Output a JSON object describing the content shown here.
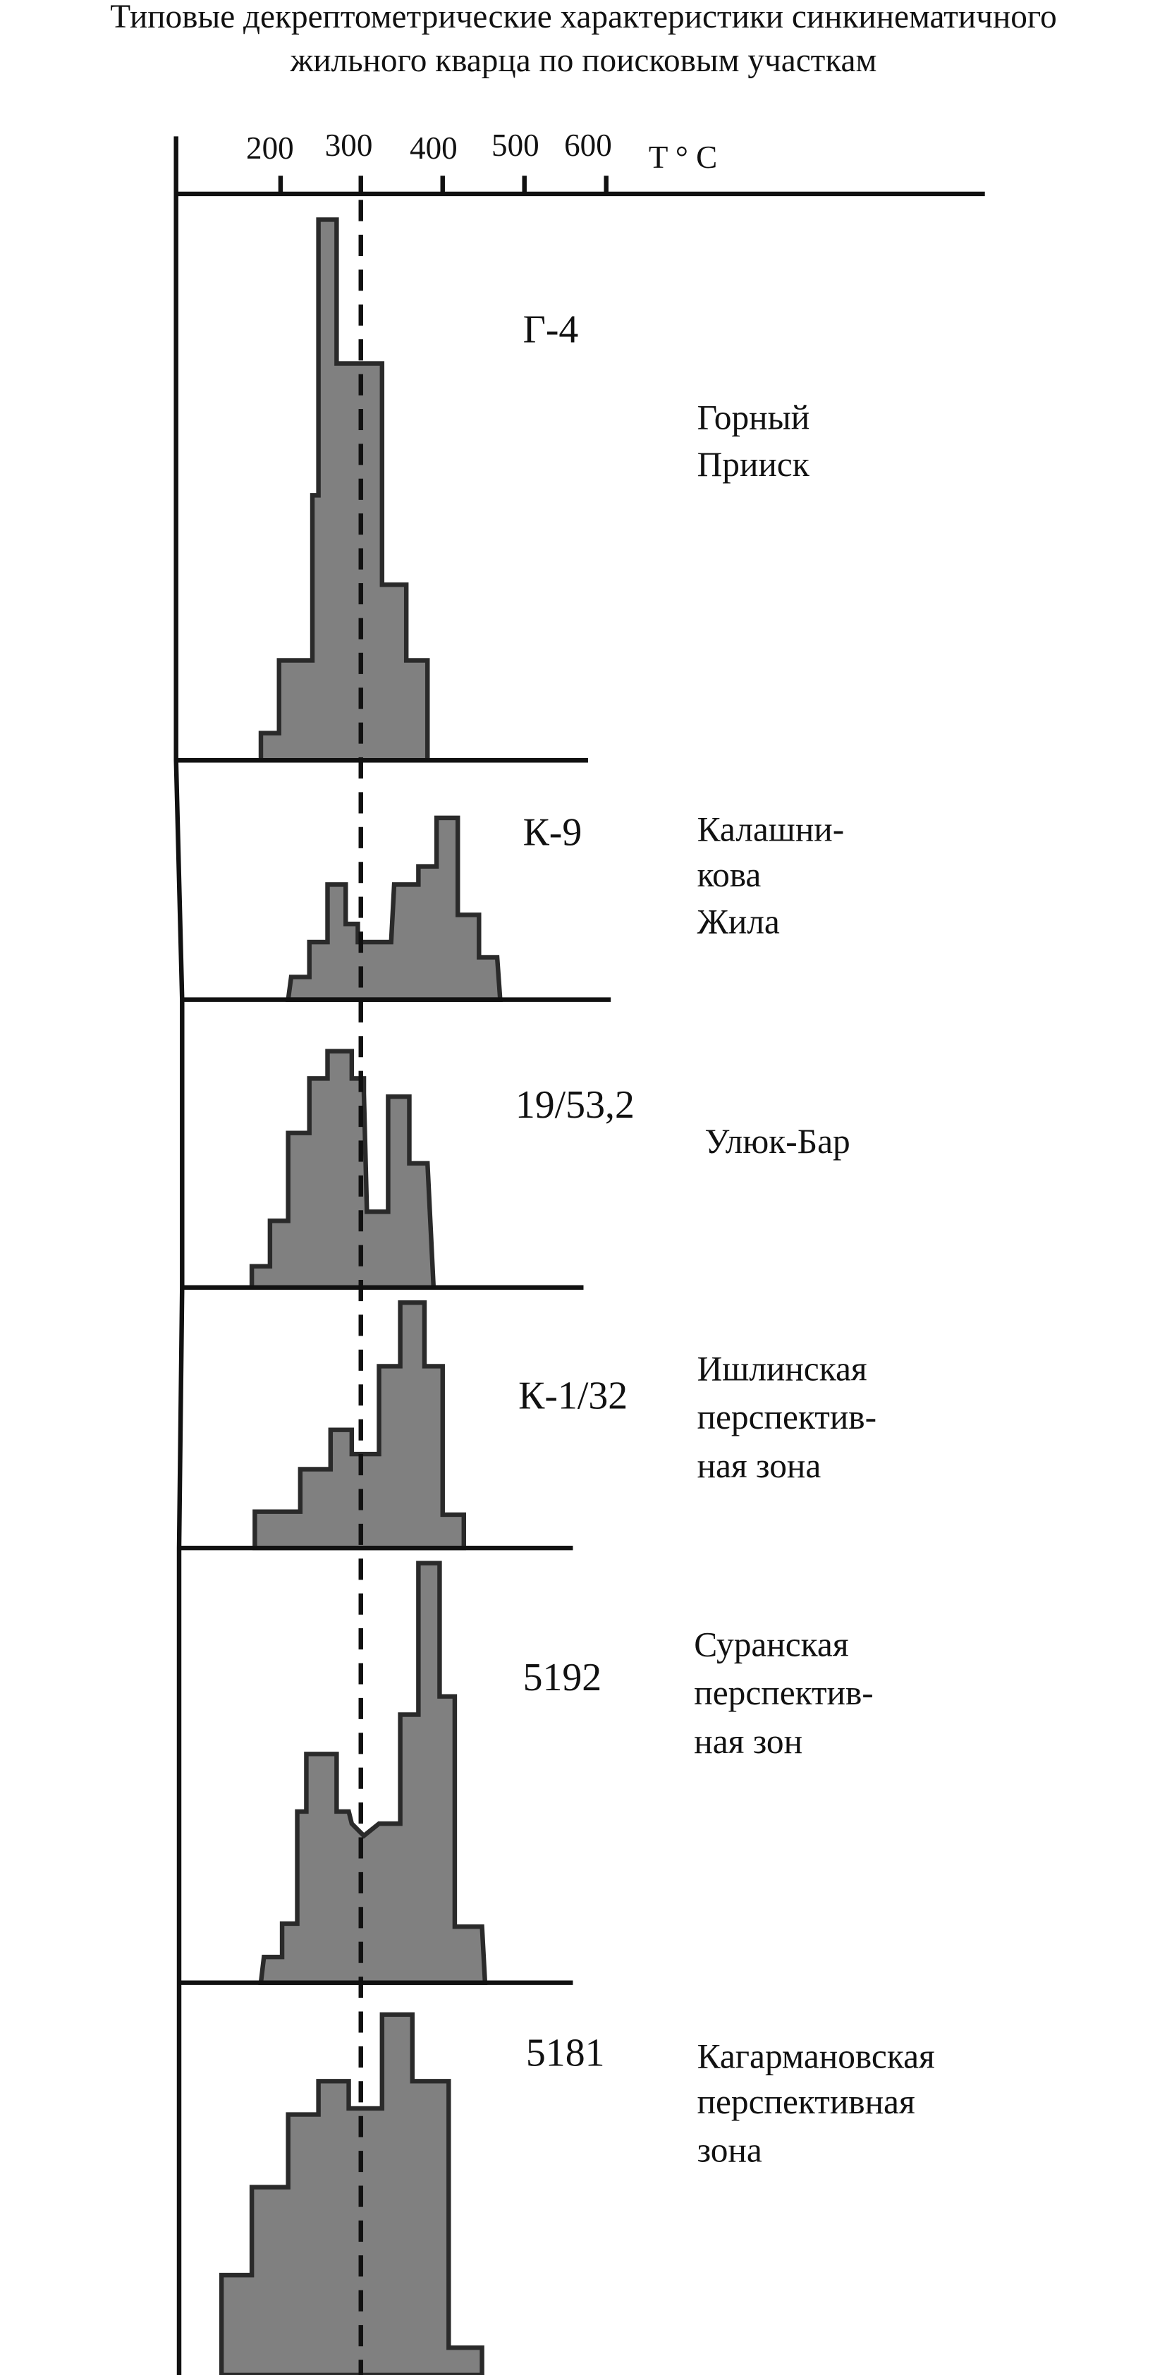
{
  "title": [
    "Типовые декрептометрические характеристики синкинематичного",
    "жильного кварца по поисковым участкам"
  ],
  "axis": {
    "ticks": [
      "200",
      "300",
      "400",
      "500",
      "600"
    ],
    "unit": "T ° C"
  },
  "panels": [
    {
      "sample": "Г-4",
      "place": [
        "Горный",
        "Прииск"
      ]
    },
    {
      "sample": "К-9",
      "place": [
        "Калашни-",
        "кова",
        "Жила"
      ]
    },
    {
      "sample": "19/53,2",
      "place": [
        "Улюк-Бар"
      ]
    },
    {
      "sample": "К-1/32",
      "place": [
        "Ишлинская",
        "перспектив-",
        "ная зона"
      ]
    },
    {
      "sample": "5192",
      "place": [
        "Суранская",
        "перспектив-",
        "ная зон"
      ]
    },
    {
      "sample": "5181",
      "place": [
        "Кагармановская",
        "перспективная",
        "зона"
      ]
    }
  ]
}
